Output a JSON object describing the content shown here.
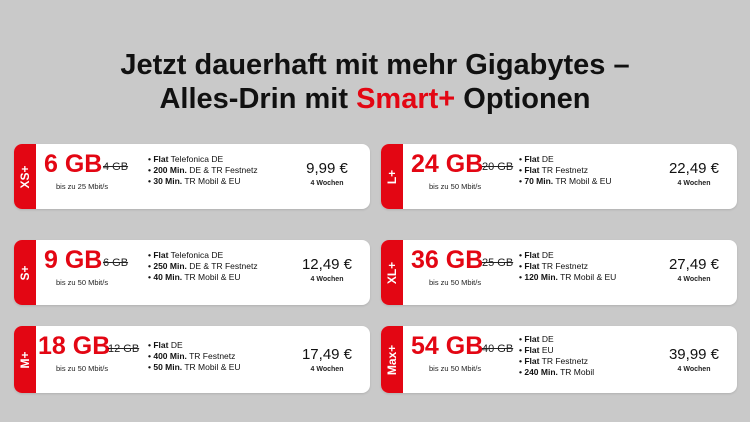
{
  "headline": {
    "line1": "Jetzt dauerhaft mit mehr Gigabytes –",
    "line2_prefix": "Alles-Drin mit ",
    "line2_accent": "Smart+",
    "line2_suffix": " Optionen"
  },
  "colors": {
    "accent": "#e30613",
    "background": "#c9c9c9",
    "card": "#ffffff"
  },
  "plans": [
    {
      "tab": "XS+",
      "gb": "6 GB",
      "old_gb": "4 GB",
      "speed": "bis zu 25 Mbit/s",
      "features": [
        {
          "bold": "Flat",
          "text": " Telefonica DE"
        },
        {
          "bold": "200 Min.",
          "text": " DE & TR Festnetz"
        },
        {
          "bold": "30 Min.",
          "text": " TR Mobil & EU"
        }
      ],
      "price": "9,99 €",
      "period": "4 Wochen"
    },
    {
      "tab": "L+",
      "gb": "24 GB",
      "old_gb": "20 GB",
      "speed": "bis zu 50 Mbit/s",
      "features": [
        {
          "bold": "Flat",
          "text": " DE"
        },
        {
          "bold": "Flat",
          "text": " TR Festnetz"
        },
        {
          "bold": "70 Min.",
          "text": " TR Mobil & EU"
        }
      ],
      "price": "22,49 €",
      "period": "4 Wochen"
    },
    {
      "tab": "S+",
      "gb": "9 GB",
      "old_gb": "6 GB",
      "speed": "bis zu 50 Mbit/s",
      "features": [
        {
          "bold": "Flat",
          "text": " Telefonica DE"
        },
        {
          "bold": "250 Min.",
          "text": " DE & TR Festnetz"
        },
        {
          "bold": "40 Min.",
          "text": " TR Mobil & EU"
        }
      ],
      "price": "12,49 €",
      "period": "4 Wochen"
    },
    {
      "tab": "XL+",
      "gb": "36 GB",
      "old_gb": "25 GB",
      "speed": "bis zu 50 Mbit/s",
      "features": [
        {
          "bold": "Flat",
          "text": " DE"
        },
        {
          "bold": "Flat",
          "text": " TR Festnetz"
        },
        {
          "bold": "120 Min.",
          "text": " TR Mobil & EU"
        }
      ],
      "price": "27,49 €",
      "period": "4 Wochen"
    },
    {
      "tab": "M+",
      "gb": "18 GB",
      "old_gb": "12 GB",
      "speed": "bis zu 50 Mbit/s",
      "features": [
        {
          "bold": "Flat",
          "text": " DE"
        },
        {
          "bold": "400 Min.",
          "text": " TR Festnetz"
        },
        {
          "bold": "50 Min.",
          "text": " TR Mobil & EU"
        }
      ],
      "price": "17,49 €",
      "period": "4 Wochen"
    },
    {
      "tab": "Max+",
      "gb": "54 GB",
      "old_gb": "40 GB",
      "speed": "bis zu 50 Mbit/s",
      "features": [
        {
          "bold": "Flat",
          "text": " DE"
        },
        {
          "bold": "Flat",
          "text": " EU"
        },
        {
          "bold": "Flat",
          "text": " TR Festnetz"
        },
        {
          "bold": "240 Min.",
          "text": " TR Mobil"
        }
      ],
      "price": "39,99 €",
      "period": "4 Wochen"
    }
  ]
}
